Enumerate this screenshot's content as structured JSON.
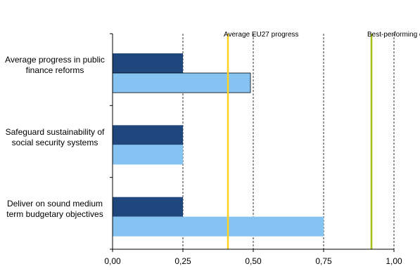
{
  "chart_data": {
    "type": "bar",
    "orientation": "horizontal",
    "categories": [
      "Average progress in public finance reforms",
      "Safeguard sustainability of social security systems",
      "Deliver on sound medium term budgetary objectives"
    ],
    "series": [
      {
        "values": [
          0.25,
          0.25,
          0.25
        ],
        "color": "#1f477d"
      },
      {
        "values": [
          0.49,
          0.25,
          0.75
        ],
        "color": "#85c4f2"
      }
    ],
    "reference_lines": [
      {
        "label": "Average EU27 progress",
        "value": 0.41,
        "color": "#ffd21f"
      },
      {
        "label": "Best-performing country",
        "value": 0.92,
        "color": "#a6bf1a"
      }
    ],
    "x_ticks": [
      "0,00",
      "0,25",
      "0,50",
      "0,75",
      "1,00"
    ],
    "xlim": [
      0,
      1
    ],
    "grid": "vertical dashed at ticks",
    "legend": "none"
  }
}
